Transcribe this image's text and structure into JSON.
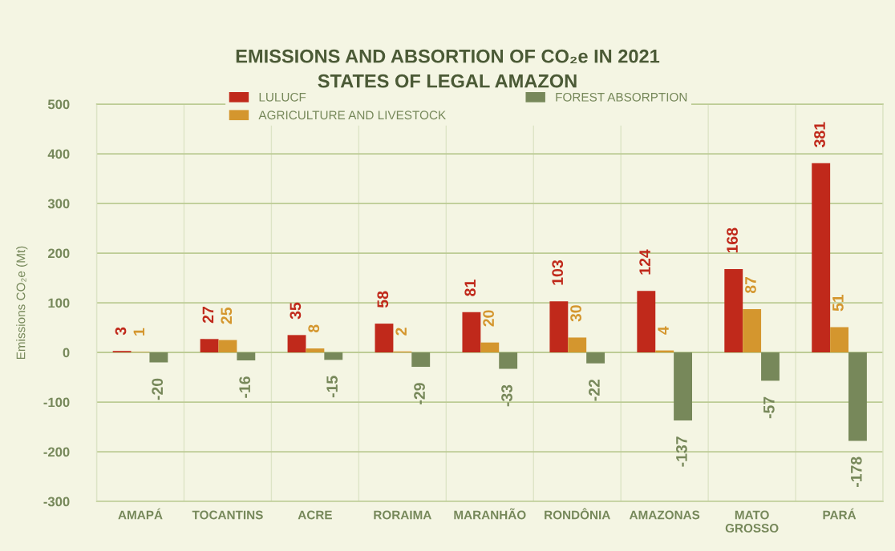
{
  "chart_data": {
    "type": "bar",
    "title": "EMISSIONS AND ABSORTION OF CO₂e IN 2021",
    "subtitle": "STATES OF LEGAL AMAZON",
    "ylabel": "Emissions CO₂e (Mt)",
    "categories": [
      "AMAPÁ",
      "TOCANTINS",
      "ACRE",
      "RORAIMA",
      "MARANHÃO",
      "RONDÔNIA",
      "AMAZONAS",
      "MATO\nGROSSO",
      "PARÁ"
    ],
    "series": [
      {
        "name": "LULUCF",
        "color": "#c0291b",
        "values": [
          3,
          27,
          35,
          58,
          81,
          103,
          124,
          168,
          381
        ]
      },
      {
        "name": "AGRICULTURE AND LIVESTOCK",
        "color": "#d4962e",
        "values": [
          1,
          25,
          8,
          2,
          20,
          30,
          4,
          87,
          51
        ]
      },
      {
        "name": "FOREST ABSORPTION",
        "color": "#77885a",
        "values": [
          -20,
          -16,
          -15,
          -29,
          -33,
          -22,
          -137,
          -57,
          -178
        ]
      }
    ],
    "ylim": [
      -300,
      500
    ],
    "yticks": [
      -300,
      -200,
      -100,
      0,
      100,
      200,
      300,
      400,
      500
    ],
    "grid": true,
    "legend": "top",
    "data_labels": true
  }
}
